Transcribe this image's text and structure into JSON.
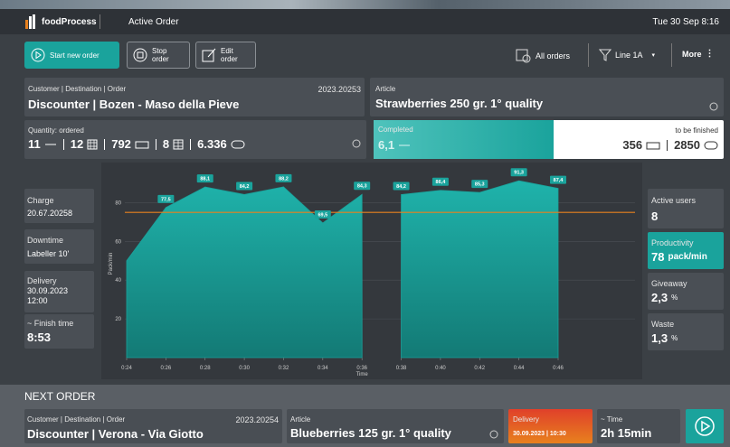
{
  "header": {
    "brand": "foodProcess",
    "page": "Active Order",
    "datetime": "Tue 30 Sep 8:16"
  },
  "toolbar": {
    "start": "Start new order",
    "stop": "Stop order",
    "edit": "Edit order",
    "all_orders": "All orders",
    "line": "Line 1A",
    "more": "More"
  },
  "order": {
    "label": "Customer | Destination | Order",
    "number": "2023.20253",
    "customer": "Discounter | Bozen - Maso della Pieve"
  },
  "article": {
    "label": "Article",
    "name": "Strawberries 250 gr. 1° quality"
  },
  "quantity": {
    "label": "Quantity: ordered",
    "values": [
      "11",
      "12",
      "792",
      "8",
      "6.336"
    ]
  },
  "completed": {
    "label": "Completed",
    "value": "6,1",
    "to_finish_label": "to be finished",
    "to_finish": [
      "356",
      "2850"
    ]
  },
  "left_cards": [
    {
      "label": "Charge",
      "value": "20.67.20258"
    },
    {
      "label": "Downtime",
      "value": "Labeller 10'"
    },
    {
      "label": "Delivery",
      "value": "30.09.2023",
      "time": "12:00"
    },
    {
      "label": "~ Finish time",
      "value": "8:53"
    }
  ],
  "right_cards": [
    {
      "label": "Active users",
      "value": "8"
    },
    {
      "label": "Productivity",
      "value": "78",
      "unit": "pack/min"
    },
    {
      "label": "Giveaway",
      "value": "2,3",
      "unit": "%"
    },
    {
      "label": "Waste",
      "value": "1,3",
      "unit": "%"
    }
  ],
  "chart_data": {
    "type": "area",
    "y_label": "Pack/min",
    "x_label": "Time",
    "x": [
      24,
      26,
      28,
      30,
      32,
      34,
      36,
      37,
      38,
      40,
      42,
      44,
      46
    ],
    "values": [
      50,
      77.5,
      88.1,
      84.2,
      88.2,
      69.5,
      84.3,
      null,
      84.2,
      86.4,
      85.3,
      91.3,
      87.4
    ],
    "value_labels": [
      null,
      "77,5",
      "88,1",
      "84,2",
      "88,2",
      "69,5",
      "84,3",
      null,
      "84,2",
      "86,4",
      "85,3",
      "91,3",
      "87,4"
    ],
    "xlim": [
      24,
      46
    ],
    "xticks": [
      {
        "value": 24,
        "label": "0:24"
      },
      {
        "value": 26,
        "label": "0:26"
      },
      {
        "value": 28,
        "label": "0:28"
      },
      {
        "value": 30,
        "label": "0:30"
      },
      {
        "value": 32,
        "label": "0:32"
      },
      {
        "value": 34,
        "label": "0:34"
      },
      {
        "value": 36,
        "label": "0:36"
      },
      {
        "value": 38,
        "label": "0:38"
      },
      {
        "value": 40,
        "label": "0:40"
      },
      {
        "value": 42,
        "label": "0:42"
      },
      {
        "value": 44,
        "label": "0:44"
      },
      {
        "value": 46,
        "label": "0:46"
      }
    ],
    "ylim": [
      0,
      97
    ],
    "yticks": [
      20,
      40,
      60,
      80
    ],
    "grid": true,
    "color": "#1aa39c",
    "threshold": 75,
    "threshold_color": "#e8811e"
  },
  "next_order": {
    "title": "NEXT ORDER",
    "order_label": "Customer | Destination | Order",
    "number": "2023.20254",
    "customer": "Discounter | Verona - Via Giotto",
    "article_label": "Article",
    "article": "Blueberries 125 gr. 1° quality",
    "delivery_label": "Delivery",
    "delivery": "30.09.2023 | 10:30",
    "time_label": "~ Time",
    "time": "2h 15min"
  }
}
